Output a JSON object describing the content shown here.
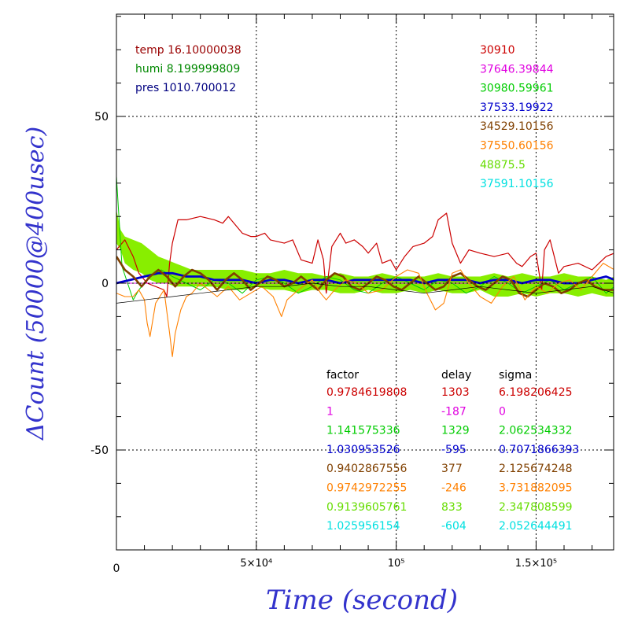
{
  "chart_data": {
    "type": "line",
    "xlabel": "Time (second)",
    "ylabel": "ΔCount (50000@400usec)",
    "xlim": [
      0,
      178000
    ],
    "ylim": [
      -80,
      82
    ],
    "x_ticks": [
      {
        "value": 0,
        "label": "0"
      },
      {
        "value": 50000,
        "label": "5×10⁴"
      },
      {
        "value": 100000,
        "label": "10⁵"
      },
      {
        "value": 150000,
        "label": "1.5×10⁵"
      }
    ],
    "y_ticks": [
      {
        "value": 50,
        "label": "50"
      },
      {
        "value": 0,
        "label": "0"
      },
      {
        "value": -50,
        "label": "-50"
      }
    ],
    "grid": "dotted at labeled ticks",
    "env_info": [
      {
        "text": "temp 16.10000038",
        "color": "#990000"
      },
      {
        "text": "humi 8.199999809",
        "color": "#008800"
      },
      {
        "text": "pres 1010.700012",
        "color": "#000080"
      }
    ],
    "offsets": [
      {
        "text": "30910",
        "color": "#cc0000"
      },
      {
        "text": "37646.39844",
        "color": "#e000e0"
      },
      {
        "text": "30980.59961",
        "color": "#00cc00"
      },
      {
        "text": "37533.19922",
        "color": "#0000cc"
      },
      {
        "text": "34529.10156",
        "color": "#804000"
      },
      {
        "text": "37550.60156",
        "color": "#ff8000"
      },
      {
        "text": "48875.5",
        "color": "#66dd00"
      },
      {
        "text": "37591.10156",
        "color": "#00e0e0"
      }
    ],
    "table_headers": {
      "factor": "factor",
      "delay": "delay",
      "sigma": "sigma"
    },
    "table_rows": [
      {
        "factor": "0.9784619808",
        "delay": "1303",
        "sigma": "6.198206425",
        "color": "#cc0000"
      },
      {
        "factor": "1",
        "delay": "-187",
        "sigma": "0",
        "color": "#e000e0"
      },
      {
        "factor": "1.141575336",
        "delay": "1329",
        "sigma": "2.062534332",
        "color": "#00cc00"
      },
      {
        "factor": "1.030953526",
        "delay": "-595",
        "sigma": "0.7071866393",
        "color": "#0000cc"
      },
      {
        "factor": "0.9402867556",
        "delay": "377",
        "sigma": "2.125674248",
        "color": "#804000"
      },
      {
        "factor": "0.9742972255",
        "delay": "-246",
        "sigma": "3.731882095",
        "color": "#ff8000"
      },
      {
        "factor": "0.9139605761",
        "delay": "833",
        "sigma": "2.347808599",
        "color": "#66dd00"
      },
      {
        "factor": "1.025956154",
        "delay": "-604",
        "sigma": "2.052644491",
        "color": "#00e0e0"
      }
    ],
    "series": [
      {
        "color": "#cc0000",
        "width": 1.2,
        "x": [
          0,
          3000,
          6000,
          8000,
          11000,
          14000,
          17000,
          18000,
          19000,
          20000,
          22000,
          25000,
          30000,
          35000,
          38000,
          40000,
          45000,
          48000,
          50000,
          53000,
          55000,
          60000,
          63000,
          66000,
          70000,
          72000,
          74000,
          75000,
          77000,
          80000,
          82000,
          85000,
          88000,
          90000,
          93000,
          95000,
          98000,
          100000,
          103000,
          106000,
          110000,
          113000,
          115000,
          118000,
          120000,
          123000,
          126000,
          130000,
          135000,
          140000,
          143000,
          145000,
          148000,
          150000,
          152000,
          153000,
          155000,
          158000,
          160000,
          165000,
          170000,
          175000,
          178000
        ],
        "y": [
          10,
          13,
          8,
          3,
          0,
          -1,
          -2,
          -4,
          6,
          12,
          19,
          19,
          20,
          19,
          18,
          20,
          15,
          14,
          14,
          15,
          13,
          12,
          13,
          7,
          6,
          13,
          7,
          -3,
          11,
          15,
          12,
          13,
          11,
          9,
          12,
          6,
          7,
          4,
          8,
          11,
          12,
          14,
          19,
          21,
          12,
          6,
          10,
          9,
          8,
          9,
          6,
          5,
          8,
          9,
          -2,
          10,
          13,
          3,
          5,
          6,
          4,
          8,
          9
        ]
      },
      {
        "color": "#e000e0",
        "width": 1.0,
        "x": [
          0,
          178000
        ],
        "y": [
          0,
          0
        ]
      },
      {
        "color": "#00cc00",
        "width": 1.0,
        "x": [
          0,
          2000,
          4000,
          6000,
          8000,
          12000,
          16000,
          20000,
          25000,
          30000,
          35000,
          40000,
          45000,
          50000,
          55000,
          60000,
          65000,
          70000,
          75000,
          80000,
          85000,
          90000,
          95000,
          100000,
          105000,
          110000,
          115000,
          120000,
          125000,
          130000,
          135000,
          140000,
          145000,
          150000,
          155000,
          160000,
          165000,
          170000,
          175000,
          178000
        ],
        "y": [
          32,
          5,
          0,
          -5,
          -2,
          2,
          4,
          2,
          0,
          -2,
          1,
          0,
          -3,
          1,
          2,
          0,
          -3,
          -1,
          2,
          1,
          -2,
          -3,
          0,
          2,
          0,
          -2,
          1,
          0,
          -3,
          -1,
          2,
          0,
          -3,
          -1,
          1,
          -2,
          0,
          2,
          -3,
          -1
        ]
      },
      {
        "color": "#0000cc",
        "width": 2.8,
        "x": [
          0,
          5000,
          10000,
          15000,
          20000,
          25000,
          30000,
          35000,
          40000,
          45000,
          50000,
          55000,
          60000,
          65000,
          70000,
          75000,
          80000,
          85000,
          90000,
          95000,
          100000,
          105000,
          110000,
          115000,
          120000,
          125000,
          130000,
          135000,
          140000,
          145000,
          150000,
          155000,
          160000,
          165000,
          170000,
          175000,
          178000
        ],
        "y": [
          0,
          1,
          2,
          3,
          3,
          2,
          2,
          1,
          1,
          1,
          0,
          1,
          1,
          0,
          1,
          1,
          0,
          1,
          1,
          1,
          1,
          1,
          0,
          1,
          1,
          1,
          0,
          1,
          1,
          0,
          1,
          1,
          0,
          0,
          1,
          2,
          1
        ]
      },
      {
        "color": "#804000",
        "width": 2.6,
        "x": [
          0,
          3000,
          6000,
          9000,
          12000,
          15000,
          18000,
          21000,
          24000,
          27000,
          30000,
          33000,
          36000,
          39000,
          42000,
          45000,
          48000,
          51000,
          54000,
          57000,
          60000,
          63000,
          66000,
          69000,
          72000,
          75000,
          78000,
          81000,
          84000,
          87000,
          90000,
          93000,
          96000,
          99000,
          102000,
          105000,
          108000,
          111000,
          114000,
          117000,
          120000,
          123000,
          126000,
          129000,
          132000,
          135000,
          138000,
          141000,
          144000,
          147000,
          150000,
          153000,
          156000,
          159000,
          162000,
          165000,
          168000,
          171000,
          174000,
          178000
        ],
        "y": [
          8,
          4,
          2,
          -1,
          2,
          4,
          2,
          -1,
          2,
          4,
          3,
          1,
          -2,
          1,
          3,
          1,
          -2,
          0,
          2,
          1,
          -1,
          0,
          2,
          0,
          -2,
          1,
          3,
          2,
          -1,
          -2,
          0,
          2,
          1,
          -1,
          -2,
          0,
          2,
          0,
          -2,
          -1,
          2,
          3,
          1,
          -1,
          -2,
          0,
          2,
          1,
          -3,
          -4,
          -2,
          0,
          -1,
          -3,
          -2,
          0,
          1,
          -1,
          -2,
          -2
        ]
      },
      {
        "color": "#ff8000",
        "width": 1.1,
        "x": [
          0,
          3000,
          6000,
          8000,
          10000,
          11000,
          12000,
          14000,
          17000,
          19000,
          20000,
          21000,
          23000,
          25000,
          27000,
          30000,
          33000,
          36000,
          40000,
          44000,
          48000,
          52000,
          56000,
          59000,
          61000,
          65000,
          70000,
          73000,
          75000,
          78000,
          82000,
          86000,
          90000,
          95000,
          100000,
          104000,
          108000,
          111000,
          114000,
          117000,
          120000,
          123000,
          126000,
          130000,
          134000,
          138000,
          142000,
          146000,
          150000,
          154000,
          158000,
          162000,
          166000,
          170000,
          174000,
          178000
        ],
        "y": [
          -3,
          -4,
          -4,
          -2,
          -5,
          -12,
          -16,
          -6,
          -2,
          -15,
          -22,
          -15,
          -8,
          -4,
          -3,
          0,
          -2,
          -4,
          -1,
          -5,
          -3,
          -1,
          -4,
          -10,
          -5,
          -2,
          1,
          -3,
          -5,
          -2,
          1,
          0,
          -3,
          -2,
          2,
          4,
          3,
          -3,
          -8,
          -6,
          3,
          4,
          0,
          -4,
          -6,
          -1,
          2,
          -5,
          -1,
          -3,
          0,
          1,
          -2,
          2,
          6,
          4
        ]
      },
      {
        "color": "#000000",
        "width": 0.7,
        "x": [
          0,
          10000,
          20000,
          30000,
          40000,
          50000,
          60000,
          70000,
          80000,
          90000,
          100000,
          110000,
          120000,
          130000,
          140000,
          150000,
          160000,
          170000,
          178000
        ],
        "y": [
          -6,
          -5,
          -4,
          -3,
          -2,
          -1,
          -1,
          0,
          -1,
          -1,
          -2,
          -3,
          -2,
          -1,
          -2,
          -3,
          -2,
          -1,
          -3
        ]
      }
    ],
    "band": {
      "color": "#88ee00",
      "x": [
        0,
        1500,
        3000,
        6000,
        9000,
        12000,
        15000,
        18000,
        21000,
        24000,
        27000,
        30000,
        35000,
        40000,
        45000,
        50000,
        55000,
        60000,
        65000,
        70000,
        75000,
        80000,
        85000,
        90000,
        95000,
        100000,
        105000,
        110000,
        115000,
        120000,
        125000,
        130000,
        135000,
        140000,
        145000,
        150000,
        155000,
        160000,
        165000,
        170000,
        175000,
        178000
      ],
      "upper": [
        22,
        16,
        14,
        13,
        12,
        10,
        8,
        7,
        6,
        5,
        4,
        4,
        4,
        4,
        4,
        3,
        3,
        4,
        3,
        3,
        2,
        3,
        2,
        2,
        3,
        2,
        2,
        2,
        3,
        2,
        2,
        2,
        3,
        2,
        3,
        2,
        2,
        3,
        2,
        2,
        1,
        2
      ],
      "lower": [
        12,
        10,
        6,
        4,
        3,
        1,
        0,
        0,
        -1,
        -1,
        -1,
        -1,
        -1,
        -2,
        -2,
        -1,
        -2,
        -2,
        -3,
        -2,
        -2,
        -3,
        -3,
        -2,
        -3,
        -3,
        -2,
        -3,
        -2,
        -3,
        -3,
        -2,
        -4,
        -4,
        -3,
        -4,
        -3,
        -3,
        -4,
        -3,
        -4,
        -4
      ]
    }
  }
}
